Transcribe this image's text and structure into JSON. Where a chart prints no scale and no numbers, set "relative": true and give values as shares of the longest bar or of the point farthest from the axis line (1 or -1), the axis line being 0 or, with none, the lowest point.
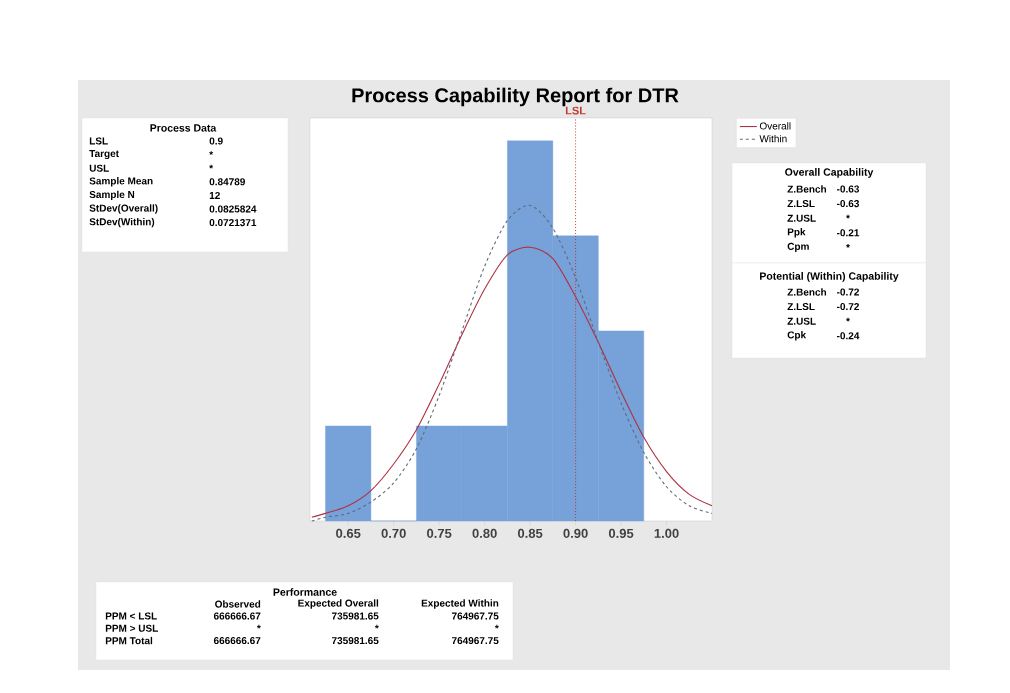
{
  "chart_data": [
    {
      "type": "histogram",
      "title": "Process Capability Report for DTR",
      "relative": true,
      "bins": [
        0.625,
        0.675,
        0.725,
        0.775,
        0.825,
        0.875,
        0.925,
        0.975
      ],
      "values": [
        0.25,
        0,
        0.25,
        0.25,
        1,
        0.75,
        0.5
      ],
      "color": "#76a1d9",
      "xlim": [
        0.608,
        1.05
      ],
      "xticks": [
        {
          "value": 0.65,
          "label": "0.65"
        },
        {
          "value": 0.7,
          "label": "0.70"
        },
        {
          "value": 0.75,
          "label": "0.75"
        },
        {
          "value": 0.8,
          "label": "0.80"
        },
        {
          "value": 0.85,
          "label": "0.85"
        },
        {
          "value": 0.9,
          "label": "0.90"
        },
        {
          "value": 0.95,
          "label": "0.95"
        },
        {
          "value": 1.0,
          "label": "1.00"
        }
      ],
      "series": [
        {
          "name": "Overall",
          "type": "line",
          "color": "#b03040",
          "line_style": "solid",
          "x": [
            0.61,
            0.625,
            0.65,
            0.675,
            0.7,
            0.725,
            0.75,
            0.775,
            0.8,
            0.825,
            0.85,
            0.875,
            0.9,
            0.925,
            0.95,
            0.975,
            1.0,
            1.025,
            1.05
          ],
          "values": [
            0.01,
            0.02,
            0.04,
            0.08,
            0.15,
            0.24,
            0.36,
            0.49,
            0.61,
            0.7,
            0.72,
            0.69,
            0.59,
            0.47,
            0.34,
            0.22,
            0.13,
            0.07,
            0.04
          ]
        },
        {
          "name": "Within",
          "type": "line",
          "color": "#5f6b78",
          "line_style": "dashed",
          "x": [
            0.61,
            0.625,
            0.65,
            0.675,
            0.7,
            0.725,
            0.75,
            0.775,
            0.8,
            0.825,
            0.85,
            0.875,
            0.9,
            0.925,
            0.95,
            0.975,
            1.0,
            1.025,
            1.05
          ],
          "values": [
            0.0,
            0.01,
            0.02,
            0.05,
            0.1,
            0.19,
            0.33,
            0.5,
            0.67,
            0.79,
            0.83,
            0.77,
            0.64,
            0.47,
            0.31,
            0.18,
            0.09,
            0.04,
            0.02
          ]
        }
      ],
      "ref_lines": [
        {
          "axis": "x",
          "value": 0.9,
          "label": "LSL",
          "color": "#c0392b",
          "line_style": "dotted"
        }
      ],
      "legend": "top right"
    },
    {
      "type": "other",
      "title": "Process Data",
      "annotations": [
        "LSL",
        "0.9",
        "Target",
        "*",
        "USL",
        "*",
        "Sample Mean",
        "0.84789",
        "Sample N",
        "12",
        "StDev(Overall)",
        "0.0825824",
        "StDev(Within)",
        "0.0721371"
      ]
    },
    {
      "type": "other",
      "title": "Overall Capability",
      "annotations": [
        "Z.Bench",
        "-0.63",
        "Z.LSL",
        "-0.63",
        "Z.USL",
        "*",
        "Ppk",
        "-0.21",
        "Cpm",
        "*"
      ]
    },
    {
      "type": "other",
      "title": "Potential (Within) Capability",
      "annotations": [
        "Z.Bench",
        "-0.72",
        "Z.LSL",
        "-0.72",
        "Z.USL",
        "*",
        "Cpk",
        "-0.24"
      ]
    },
    {
      "type": "other",
      "title": "Performance",
      "annotations": [
        "Observed",
        "Expected Overall",
        "Expected Within",
        "PPM < LSL",
        "666666.67",
        "735981.65",
        "764967.75",
        "PPM > USL",
        "*",
        "*",
        "*",
        "PPM Total",
        "666666.67",
        "735981.65",
        "764967.75"
      ]
    }
  ]
}
